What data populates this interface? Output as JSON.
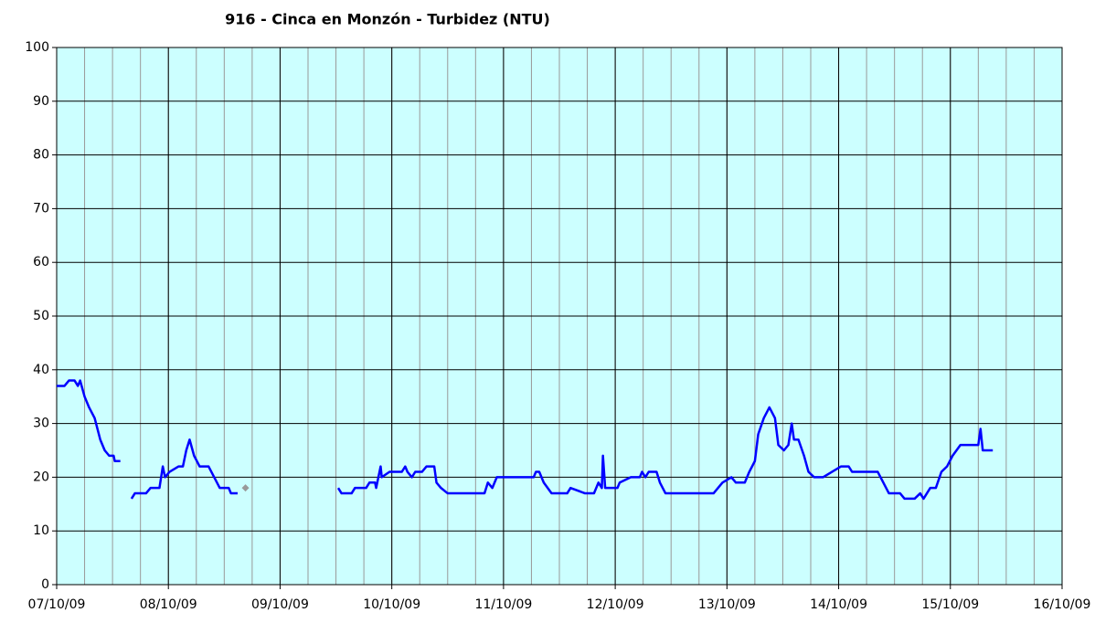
{
  "chart_data": {
    "type": "line",
    "title": "916 - Cinca en Monzón - Turbidez (NTU)",
    "xlim": [
      0,
      9
    ],
    "xticks": [
      {
        "value": 0,
        "label": "07/10/09"
      },
      {
        "value": 1,
        "label": "08/10/09"
      },
      {
        "value": 2,
        "label": "09/10/09"
      },
      {
        "value": 3,
        "label": "10/10/09"
      },
      {
        "value": 4,
        "label": "11/10/09"
      },
      {
        "value": 5,
        "label": "12/10/09"
      },
      {
        "value": 6,
        "label": "13/10/09"
      },
      {
        "value": 7,
        "label": "14/10/09"
      },
      {
        "value": 8,
        "label": "15/10/09"
      },
      {
        "value": 9,
        "label": "16/10/09"
      }
    ],
    "x_minor_interval": 0.25,
    "ylim": [
      0,
      100
    ],
    "yticks": [
      0,
      10,
      20,
      30,
      40,
      50,
      60,
      70,
      80,
      90,
      100
    ],
    "grid": true,
    "background": "#ccffff",
    "series": [
      {
        "color": "#0000ff",
        "x": [
          0,
          0.07,
          0.11,
          0.16,
          0.19,
          0.21,
          0.25,
          0.29,
          0.34,
          0.39,
          0.43,
          0.47,
          0.51,
          0.52,
          0.57,
          0.62,
          0.67,
          0.7,
          0.8,
          0.84,
          0.92,
          0.95,
          0.97,
          1.01,
          1.09,
          1.13,
          1.16,
          1.19,
          1.23,
          1.28,
          1.36,
          1.41,
          1.46,
          1.54,
          1.56,
          1.62,
          1.95,
          2.52,
          2.55,
          2.64,
          2.67,
          2.77,
          2.8,
          2.85,
          2.86,
          2.88,
          2.9,
          2.91,
          2.98,
          3.09,
          3.12,
          3.14,
          3.18,
          3.21,
          3.27,
          3.31,
          3.38,
          3.4,
          3.44,
          3.5,
          3.83,
          3.86,
          3.9,
          3.94,
          4.08,
          4.27,
          4.29,
          4.32,
          4.36,
          4.43,
          4.57,
          4.6,
          4.73,
          4.81,
          4.85,
          4.88,
          4.89,
          4.91,
          5.02,
          5.04,
          5.14,
          5.22,
          5.24,
          5.27,
          5.3,
          5.37,
          5.4,
          5.45,
          5.88,
          5.92,
          5.96,
          6.04,
          6.08,
          6.16,
          6.2,
          6.25,
          6.28,
          6.33,
          6.38,
          6.43,
          6.46,
          6.51,
          6.55,
          6.58,
          6.6,
          6.64,
          6.69,
          6.73,
          6.78,
          6.86,
          6.94,
          7.02,
          7.09,
          7.12,
          7.35,
          7.4,
          7.45,
          7.55,
          7.59,
          7.68,
          7.73,
          7.76,
          7.79,
          7.82,
          7.87,
          7.92,
          7.97,
          8.02,
          8.09,
          8.25,
          8.27,
          8.29,
          8.38
        ],
        "values": [
          37,
          37,
          38,
          38,
          37,
          38,
          35,
          33,
          31,
          27,
          25,
          24,
          24,
          23,
          23,
          null,
          16,
          17,
          17,
          18,
          18,
          22,
          20,
          21,
          22,
          22,
          25,
          27,
          24,
          22,
          22,
          20,
          18,
          18,
          17,
          17,
          null,
          18,
          17,
          17,
          18,
          18,
          19,
          19,
          18,
          20,
          22,
          20,
          21,
          21,
          22,
          21,
          20,
          21,
          21,
          22,
          22,
          19,
          18,
          17,
          17,
          19,
          18,
          20,
          20,
          20,
          21,
          21,
          19,
          17,
          17,
          18,
          17,
          17,
          19,
          18,
          24,
          18,
          18,
          19,
          20,
          20,
          21,
          20,
          21,
          21,
          19,
          17,
          17,
          18,
          19,
          20,
          19,
          19,
          21,
          23,
          28,
          31,
          33,
          31,
          26,
          25,
          26,
          30,
          27,
          27,
          24,
          21,
          20,
          20,
          21,
          22,
          22,
          21,
          21,
          19,
          17,
          17,
          16,
          16,
          17,
          16,
          17,
          18,
          18,
          21,
          22,
          24,
          26,
          26,
          29,
          25,
          25
        ]
      },
      {
        "color": "#999999",
        "marker": "diamond",
        "x": [
          1.69
        ],
        "values": [
          18
        ]
      }
    ]
  }
}
